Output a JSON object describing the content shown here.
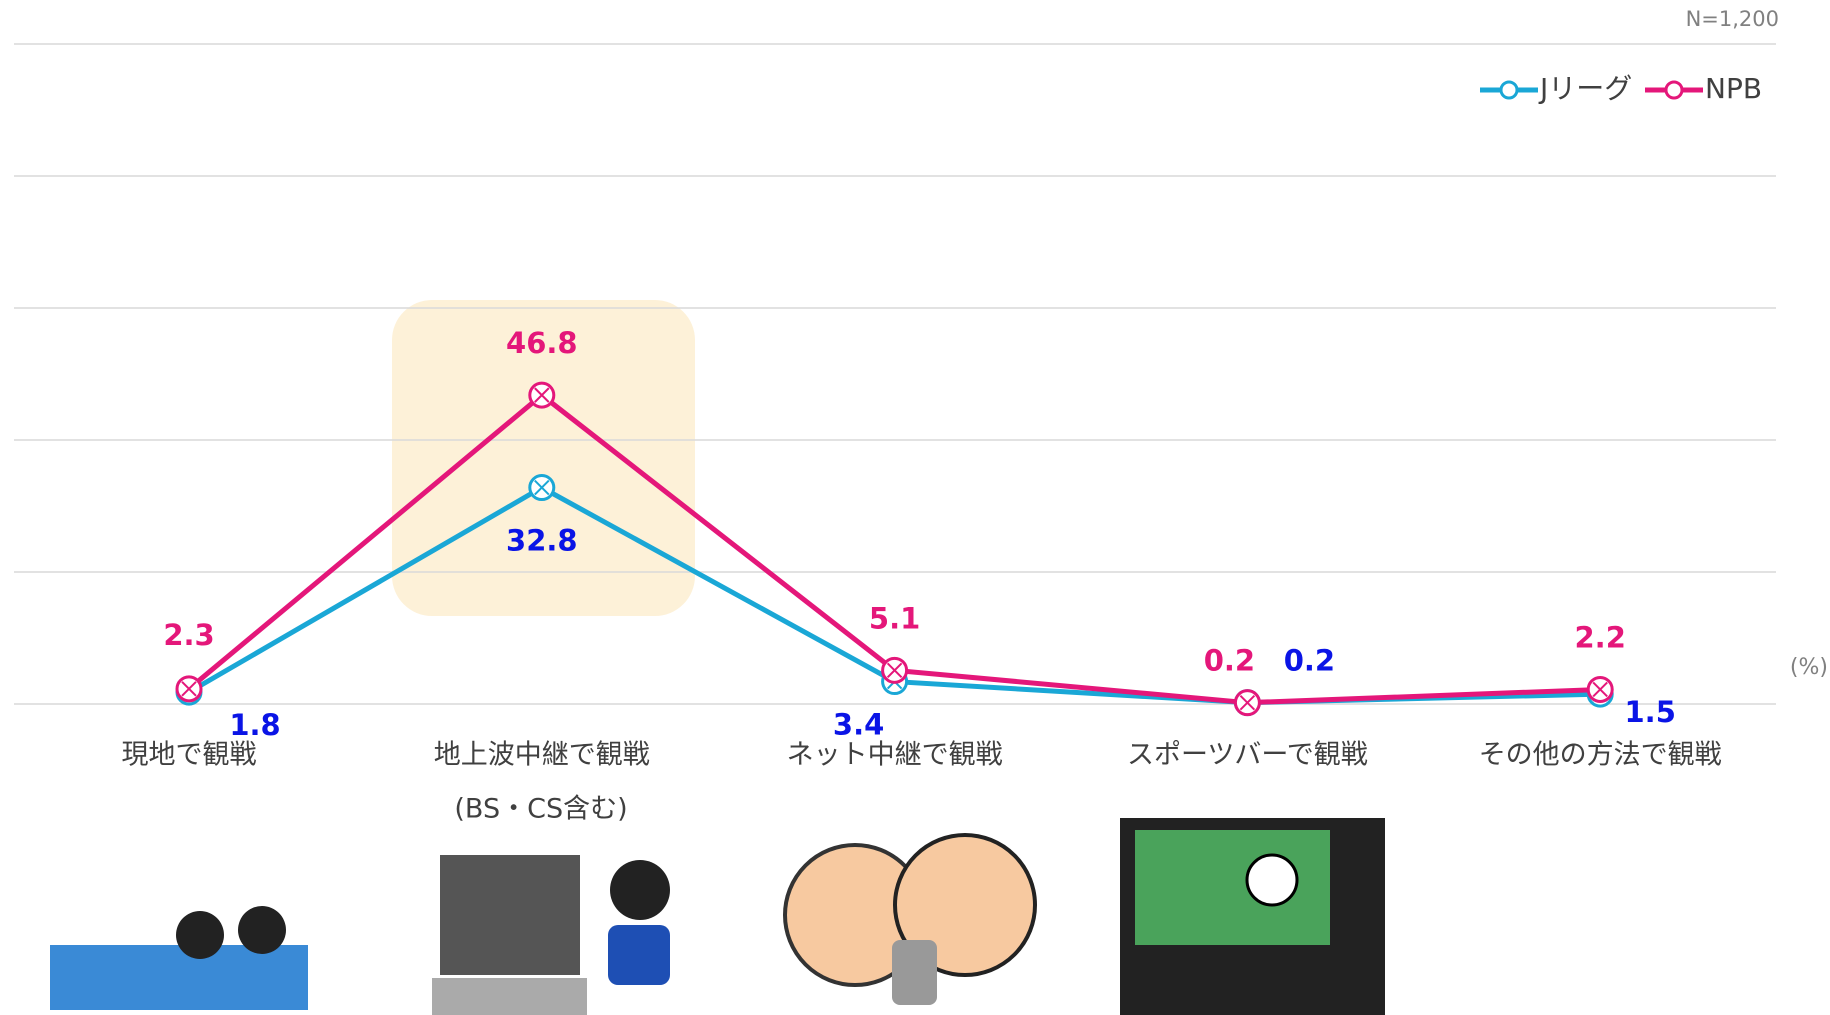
{
  "chart_data": {
    "type": "line",
    "note": "N=1,200",
    "unit": "(%)",
    "categories": [
      "現地で観戦",
      "地上波中継で観戦",
      "ネット中継で観戦",
      "スポーツバーで観戦",
      "その他の方法で観戦"
    ],
    "annotations": [
      {
        "text": "(BS・CS含む)"
      }
    ],
    "series": [
      {
        "name": "Jリーグ",
        "color": "#1aa7d6",
        "label_color": "#0a14e6",
        "values": [
          1.8,
          32.8,
          3.4,
          0.2,
          1.5
        ]
      },
      {
        "name": "NPB",
        "color": "#e4177a",
        "label_color": "#e4177a",
        "values": [
          2.3,
          46.8,
          5.1,
          0.2,
          2.2
        ]
      }
    ],
    "ylim": [
      0,
      100
    ],
    "yticks": [
      0,
      20,
      40,
      60,
      80,
      100
    ],
    "grid": true,
    "legend": "top-right"
  }
}
